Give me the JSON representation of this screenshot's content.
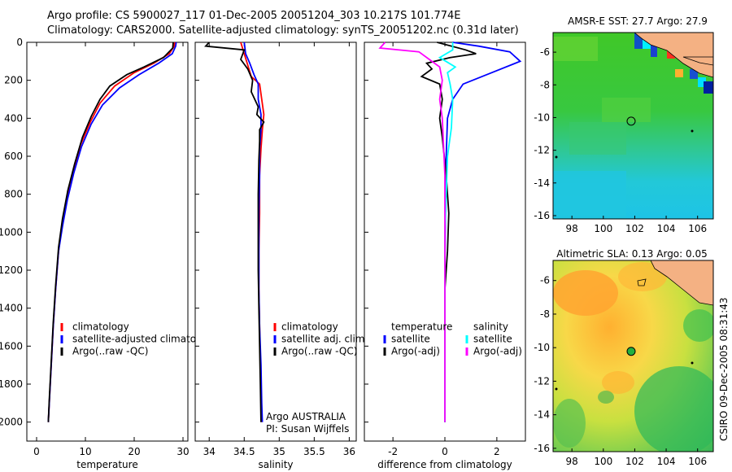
{
  "title_line1": "Argo profile: CS 5900027_117 01-Dec-2005 20051204_303 10.217S 101.774E",
  "title_line2": "Climatology: CARS2000. Satellite-adjusted climatology: synTS_20051202.nc (0.31d later)",
  "side_stamp": "CSIRO 09-Dec-2005 08:31:43",
  "credit": {
    "line1": "Argo AUSTRALIA",
    "line2": "PI: Susan Wijffels"
  },
  "colors": {
    "climatology": "#ff0000",
    "satellite": "#0000ff",
    "argo": "#000000",
    "argo_sal_adj": "#ff00ff",
    "sat_sal": "#00ffff",
    "sea_orange": "#f4b183"
  },
  "chart_data": [
    {
      "type": "line",
      "id": "temperature",
      "xlabel": "temperature",
      "ylabel": "",
      "xlim": [
        -2,
        31
      ],
      "ylim": [
        2100,
        0
      ],
      "xticks": [
        0,
        10,
        20,
        30
      ],
      "yticks": [
        0,
        200,
        400,
        600,
        800,
        1000,
        1200,
        1400,
        1600,
        1800,
        2000
      ],
      "legend": [
        "climatology",
        "satellite-adjusted climatology",
        "Argo(..raw -QC)"
      ],
      "series": [
        {
          "name": "climatology",
          "color": "#ff0000",
          "points": [
            [
              28.3,
              0
            ],
            [
              28.2,
              20
            ],
            [
              27.2,
              60
            ],
            [
              24,
              110
            ],
            [
              20,
              160
            ],
            [
              16,
              230
            ],
            [
              13,
              320
            ],
            [
              11,
              420
            ],
            [
              9,
              540
            ],
            [
              7.5,
              680
            ],
            [
              6.2,
              820
            ],
            [
              5.2,
              960
            ],
            [
              4.5,
              1100
            ],
            [
              3.9,
              1300
            ],
            [
              3.4,
              1500
            ],
            [
              3,
              1700
            ],
            [
              2.6,
              1900
            ],
            [
              2.4,
              2000
            ]
          ]
        },
        {
          "name": "satellite",
          "color": "#0000ff",
          "points": [
            [
              28.6,
              0
            ],
            [
              28.5,
              20
            ],
            [
              27.8,
              60
            ],
            [
              25,
              110
            ],
            [
              21,
              170
            ],
            [
              17,
              240
            ],
            [
              13.5,
              330
            ],
            [
              11.2,
              430
            ],
            [
              9.2,
              550
            ],
            [
              7.6,
              690
            ],
            [
              6.3,
              830
            ],
            [
              5.3,
              970
            ],
            [
              4.5,
              1100
            ],
            [
              3.9,
              1300
            ],
            [
              3.4,
              1500
            ],
            [
              3,
              1700
            ],
            [
              2.6,
              1900
            ],
            [
              2.4,
              2000
            ]
          ]
        },
        {
          "name": "Argo(..raw -QC)",
          "color": "#000000",
          "points": [
            [
              28,
              0
            ],
            [
              27.9,
              30
            ],
            [
              26,
              80
            ],
            [
              22,
              130
            ],
            [
              18.5,
              170
            ],
            [
              15,
              230
            ],
            [
              13,
              300
            ],
            [
              11.2,
              390
            ],
            [
              9.4,
              500
            ],
            [
              7.8,
              640
            ],
            [
              6.4,
              780
            ],
            [
              5.3,
              930
            ],
            [
              4.5,
              1080
            ],
            [
              3.9,
              1280
            ],
            [
              3.4,
              1480
            ],
            [
              3,
              1680
            ],
            [
              2.6,
              1880
            ],
            [
              2.4,
              2000
            ]
          ]
        }
      ]
    },
    {
      "type": "line",
      "id": "salinity",
      "xlabel": "salinity",
      "xlim": [
        33.8,
        36.1
      ],
      "ylim": [
        2100,
        0
      ],
      "xticks": [
        34,
        34.5,
        35,
        35.5,
        36
      ],
      "legend": [
        "climatology",
        "satellite adj. clim.",
        "Argo(..raw -QC)"
      ],
      "series": [
        {
          "name": "climatology",
          "color": "#ff0000",
          "points": [
            [
              34.45,
              0
            ],
            [
              34.5,
              60
            ],
            [
              34.55,
              120
            ],
            [
              34.6,
              180
            ],
            [
              34.72,
              220
            ],
            [
              34.75,
              300
            ],
            [
              34.78,
              380
            ],
            [
              34.76,
              460
            ],
            [
              34.74,
              560
            ],
            [
              34.72,
              700
            ],
            [
              34.72,
              900
            ],
            [
              34.71,
              1100
            ],
            [
              34.71,
              1300
            ],
            [
              34.72,
              1500
            ],
            [
              34.73,
              1700
            ],
            [
              34.74,
              1900
            ],
            [
              34.75,
              2000
            ]
          ]
        },
        {
          "name": "satellite",
          "color": "#0000ff",
          "points": [
            [
              34.5,
              0
            ],
            [
              34.52,
              60
            ],
            [
              34.58,
              110
            ],
            [
              34.64,
              170
            ],
            [
              34.7,
              220
            ],
            [
              34.7,
              300
            ],
            [
              34.74,
              380
            ],
            [
              34.74,
              460
            ],
            [
              34.72,
              560
            ],
            [
              34.72,
              700
            ],
            [
              34.71,
              900
            ],
            [
              34.71,
              1100
            ],
            [
              34.71,
              1300
            ],
            [
              34.72,
              1500
            ],
            [
              34.74,
              1700
            ],
            [
              34.75,
              1900
            ],
            [
              34.76,
              2000
            ]
          ]
        },
        {
          "name": "Argo(..raw -QC)",
          "color": "#000000",
          "points": [
            [
              34.0,
              0
            ],
            [
              33.95,
              20
            ],
            [
              34.5,
              40
            ],
            [
              34.45,
              90
            ],
            [
              34.55,
              140
            ],
            [
              34.62,
              200
            ],
            [
              34.6,
              260
            ],
            [
              34.65,
              300
            ],
            [
              34.7,
              340
            ],
            [
              34.68,
              380
            ],
            [
              34.78,
              420
            ],
            [
              34.72,
              460
            ],
            [
              34.72,
              520
            ],
            [
              34.71,
              620
            ],
            [
              34.7,
              800
            ],
            [
              34.7,
              1000
            ],
            [
              34.7,
              1200
            ],
            [
              34.71,
              1400
            ],
            [
              34.72,
              1600
            ],
            [
              34.73,
              1800
            ],
            [
              34.74,
              2000
            ]
          ]
        }
      ]
    },
    {
      "type": "line",
      "id": "difference",
      "xlabel": "difference from climatology",
      "xlim": [
        -3.1,
        3.1
      ],
      "ylim": [
        2100,
        0
      ],
      "xticks": [
        -2,
        0,
        2
      ],
      "legend_left": [
        "temperature",
        "satellite",
        "Argo(-adj)"
      ],
      "legend_right": [
        "salinity",
        "satellite",
        "Argo(-adj)"
      ],
      "series": [
        {
          "name": "temperature satellite",
          "color": "#0000ff",
          "points": [
            [
              0.3,
              0
            ],
            [
              1.3,
              20
            ],
            [
              2.5,
              50
            ],
            [
              2.9,
              100
            ],
            [
              1.8,
              160
            ],
            [
              0.7,
              220
            ],
            [
              0.3,
              300
            ],
            [
              0.1,
              400
            ],
            [
              0.05,
              600
            ],
            [
              0.02,
              900
            ],
            [
              0,
              1200
            ],
            [
              0,
              1600
            ],
            [
              0,
              2000
            ]
          ]
        },
        {
          "name": "temperature Argo(-adj)",
          "color": "#000000",
          "points": [
            [
              -0.3,
              0
            ],
            [
              0.8,
              40
            ],
            [
              1.2,
              60
            ],
            [
              0.2,
              80
            ],
            [
              -0.7,
              110
            ],
            [
              -0.5,
              140
            ],
            [
              -0.9,
              180
            ],
            [
              -0.2,
              220
            ],
            [
              -0.1,
              300
            ],
            [
              -0.2,
              400
            ],
            [
              -0.1,
              500
            ],
            [
              0.05,
              700
            ],
            [
              0.15,
              900
            ],
            [
              0.1,
              1100
            ],
            [
              0,
              1300
            ],
            [
              0,
              1600
            ],
            [
              0,
              2000
            ]
          ]
        },
        {
          "name": "salinity satellite",
          "color": "#00ffff",
          "points": [
            [
              0.3,
              0
            ],
            [
              0.3,
              40
            ],
            [
              -0.2,
              80
            ],
            [
              0.4,
              130
            ],
            [
              0.1,
              160
            ],
            [
              0.2,
              220
            ],
            [
              0.3,
              300
            ],
            [
              0.25,
              450
            ],
            [
              0.1,
              600
            ],
            [
              0.05,
              800
            ],
            [
              0,
              1000
            ],
            [
              0,
              1400
            ],
            [
              0,
              2000
            ]
          ]
        },
        {
          "name": "salinity Argo(-adj)",
          "color": "#ff00ff",
          "points": [
            [
              -2.3,
              0
            ],
            [
              -2.5,
              30
            ],
            [
              -1.0,
              50
            ],
            [
              -0.6,
              90
            ],
            [
              -0.2,
              130
            ],
            [
              -0.1,
              200
            ],
            [
              -0.2,
              300
            ],
            [
              -0.1,
              400
            ],
            [
              -0.05,
              550
            ],
            [
              0,
              700
            ],
            [
              0,
              1000
            ],
            [
              0,
              1500
            ],
            [
              0,
              2000
            ]
          ]
        }
      ]
    },
    {
      "type": "heatmap",
      "id": "sst_map",
      "title": "AMSR-E SST: 27.7 Argo: 27.9",
      "xlim": [
        96.8,
        107
      ],
      "ylim": [
        -16.2,
        -4.8
      ],
      "xticks": [
        98,
        100,
        102,
        104,
        106
      ],
      "yticks": [
        -6,
        -8,
        -10,
        -12,
        -14,
        -16
      ],
      "marker": [
        101.77,
        -10.22
      ]
    },
    {
      "type": "heatmap",
      "id": "sla_map",
      "title": "Altimetric SLA: 0.13 Argo: 0.05",
      "xlim": [
        96.8,
        107
      ],
      "ylim": [
        -16.2,
        -4.8
      ],
      "xticks": [
        98,
        100,
        102,
        104,
        106
      ],
      "yticks": [
        -6,
        -8,
        -10,
        -12,
        -14,
        -16
      ],
      "marker": [
        101.77,
        -10.22
      ]
    }
  ]
}
